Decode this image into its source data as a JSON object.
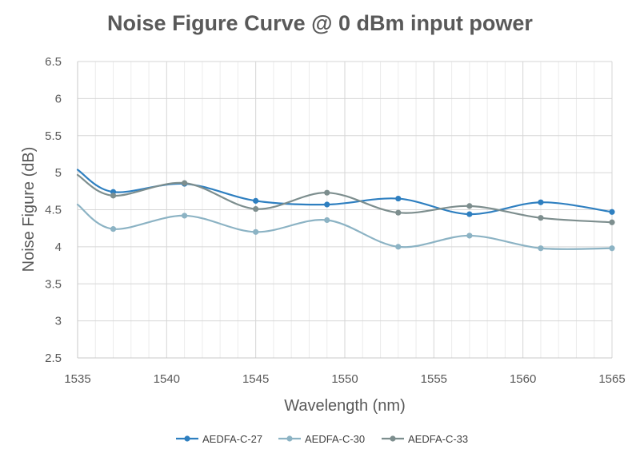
{
  "chart_data": {
    "type": "line",
    "title": "Noise Figure Curve @ 0 dBm input power",
    "xlabel": "Wavelength (nm)",
    "ylabel": "Noise Figure (dB)",
    "xlim": [
      1535,
      1565
    ],
    "ylim": [
      2.5,
      6.5
    ],
    "xticks": [
      1535,
      1540,
      1545,
      1550,
      1555,
      1560,
      1565
    ],
    "yticks": [
      2.5,
      3,
      3.5,
      4,
      4.5,
      5,
      5.5,
      6,
      6.5
    ],
    "grid": true,
    "smooth": true,
    "legend_position": "bottom",
    "series": [
      {
        "name": "AEDFA-C-27",
        "color": "#2e7fc0",
        "x": [
          1535,
          1537,
          1541,
          1545,
          1549,
          1553,
          1557,
          1561,
          1565
        ],
        "y": [
          5.04,
          4.74,
          4.85,
          4.62,
          4.57,
          4.65,
          4.44,
          4.6,
          4.47
        ],
        "marker_start": 1
      },
      {
        "name": "AEDFA-C-30",
        "color": "#8cb3c4",
        "x": [
          1535,
          1537,
          1541,
          1545,
          1549,
          1553,
          1557,
          1561,
          1565
        ],
        "y": [
          4.57,
          4.24,
          4.42,
          4.2,
          4.36,
          4.0,
          4.15,
          3.98,
          3.98
        ],
        "marker_start": 1
      },
      {
        "name": "AEDFA-C-33",
        "color": "#7d8e8e",
        "x": [
          1535,
          1537,
          1541,
          1545,
          1549,
          1553,
          1557,
          1561,
          1565
        ],
        "y": [
          4.97,
          4.69,
          4.86,
          4.51,
          4.73,
          4.46,
          4.55,
          4.39,
          4.33
        ],
        "marker_start": 1
      }
    ]
  }
}
